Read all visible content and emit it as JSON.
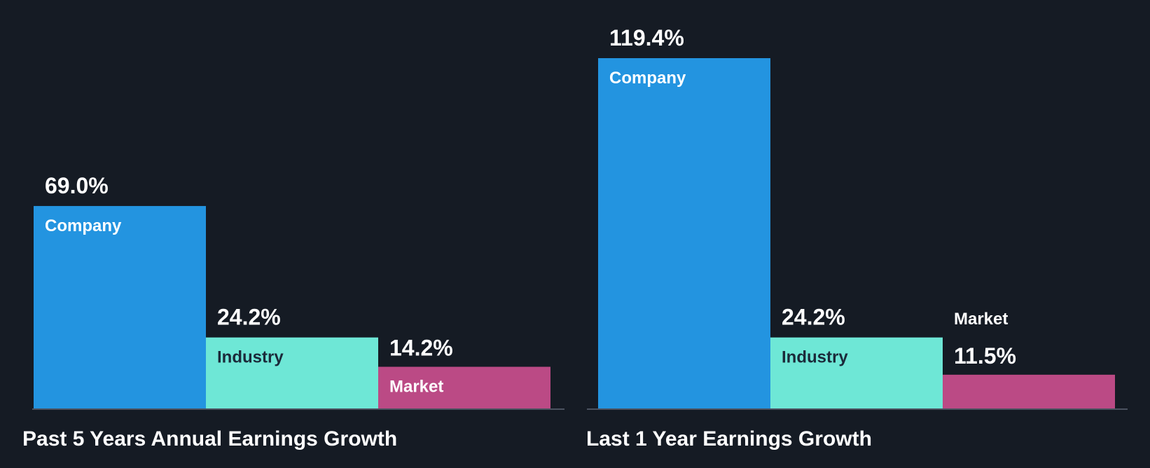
{
  "colors": {
    "background": "#151b24",
    "company": "#2394e0",
    "industry": "#6ee7d6",
    "market": "#bb4a85",
    "baseline": "#4b5260",
    "label_on_light": "#1b2a3a",
    "label_on_dark": "#ffffff"
  },
  "chart_data": [
    {
      "type": "bar",
      "title": "Past 5 Years Annual Earnings Growth",
      "categories": [
        "Company",
        "Industry",
        "Market"
      ],
      "values": [
        69.0,
        24.2,
        14.2
      ],
      "value_labels": [
        "69.0%",
        "24.2%",
        "14.2%"
      ],
      "ylim": [
        0,
        119.4
      ],
      "xlabel": "",
      "ylabel": "",
      "legend": "none",
      "grid": false
    },
    {
      "type": "bar",
      "title": "Last 1 Year Earnings Growth",
      "categories": [
        "Company",
        "Industry",
        "Market"
      ],
      "values": [
        119.4,
        24.2,
        11.5
      ],
      "value_labels": [
        "119.4%",
        "24.2%",
        "11.5%"
      ],
      "ylim": [
        0,
        119.4
      ],
      "xlabel": "",
      "ylabel": "",
      "legend": "none",
      "grid": false
    }
  ]
}
